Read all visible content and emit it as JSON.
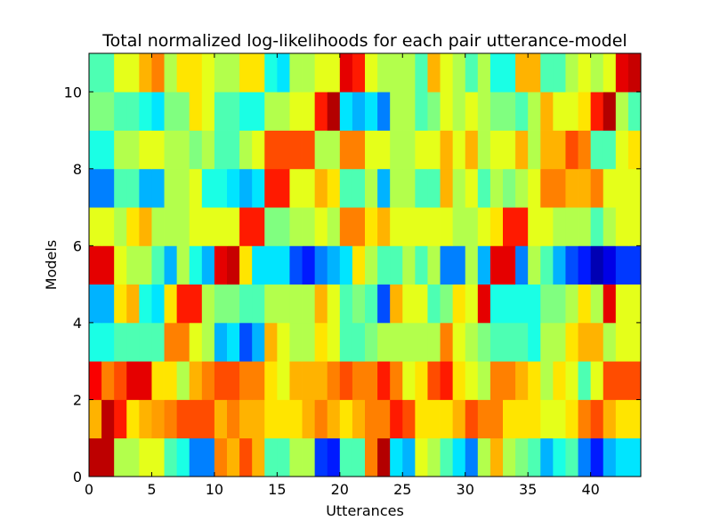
{
  "chart_data": {
    "type": "heatmap",
    "title": "Total normalized log-likelihoods for each pair utterance-model",
    "xlabel": "Utterances",
    "ylabel": "Models",
    "xlim": [
      0,
      44
    ],
    "ylim": [
      0,
      11
    ],
    "xticks": [
      "0",
      "5",
      "10",
      "15",
      "20",
      "25",
      "30",
      "35",
      "40"
    ],
    "yticks": [
      "0",
      "2",
      "4",
      "6",
      "8",
      "10"
    ],
    "colormap": "jet",
    "value_range": [
      0,
      1
    ],
    "grid": false,
    "legend": "none",
    "rows_bottom_to_top": [
      [
        0.94,
        0.94,
        0.55,
        0.55,
        0.6,
        0.6,
        0.45,
        0.4,
        0.25,
        0.25,
        0.75,
        0.7,
        0.8,
        0.7,
        0.45,
        0.45,
        0.55,
        0.55,
        0.18,
        0.15,
        0.45,
        0.45,
        0.75,
        0.95,
        0.35,
        0.3,
        0.6,
        0.55,
        0.45,
        0.35,
        0.25,
        0.55,
        0.7,
        0.55,
        0.5,
        0.45,
        0.3,
        0.4,
        0.45,
        0.25,
        0.15,
        0.3,
        0.35,
        0.35
      ],
      [
        0.7,
        0.94,
        0.85,
        0.65,
        0.7,
        0.72,
        0.75,
        0.8,
        0.8,
        0.8,
        0.7,
        0.75,
        0.7,
        0.7,
        0.65,
        0.65,
        0.65,
        0.7,
        0.75,
        0.7,
        0.65,
        0.7,
        0.75,
        0.75,
        0.85,
        0.8,
        0.65,
        0.65,
        0.65,
        0.7,
        0.8,
        0.75,
        0.75,
        0.65,
        0.65,
        0.65,
        0.6,
        0.6,
        0.65,
        0.75,
        0.8,
        0.7,
        0.65,
        0.65
      ],
      [
        0.88,
        0.75,
        0.8,
        0.9,
        0.9,
        0.65,
        0.65,
        0.55,
        0.7,
        0.75,
        0.8,
        0.8,
        0.75,
        0.75,
        0.65,
        0.6,
        0.7,
        0.7,
        0.7,
        0.75,
        0.8,
        0.75,
        0.75,
        0.85,
        0.75,
        0.6,
        0.65,
        0.8,
        0.85,
        0.65,
        0.6,
        0.55,
        0.75,
        0.75,
        0.7,
        0.65,
        0.55,
        0.65,
        0.6,
        0.45,
        0.6,
        0.8,
        0.8,
        0.8
      ],
      [
        0.4,
        0.4,
        0.45,
        0.45,
        0.45,
        0.45,
        0.75,
        0.75,
        0.6,
        0.55,
        0.3,
        0.35,
        0.2,
        0.3,
        0.7,
        0.6,
        0.55,
        0.55,
        0.65,
        0.6,
        0.45,
        0.45,
        0.5,
        0.55,
        0.55,
        0.55,
        0.55,
        0.55,
        0.75,
        0.6,
        0.55,
        0.5,
        0.45,
        0.45,
        0.45,
        0.4,
        0.55,
        0.55,
        0.65,
        0.7,
        0.7,
        0.55,
        0.6,
        0.6
      ],
      [
        0.3,
        0.3,
        0.65,
        0.7,
        0.4,
        0.35,
        0.65,
        0.85,
        0.85,
        0.55,
        0.5,
        0.5,
        0.45,
        0.45,
        0.55,
        0.55,
        0.55,
        0.55,
        0.7,
        0.6,
        0.45,
        0.5,
        0.45,
        0.2,
        0.7,
        0.6,
        0.6,
        0.45,
        0.5,
        0.65,
        0.6,
        0.9,
        0.4,
        0.4,
        0.4,
        0.4,
        0.5,
        0.5,
        0.55,
        0.65,
        0.55,
        0.9,
        0.6,
        0.6
      ],
      [
        0.9,
        0.9,
        0.6,
        0.55,
        0.55,
        0.45,
        0.3,
        0.55,
        0.4,
        0.3,
        0.9,
        0.93,
        0.65,
        0.35,
        0.35,
        0.35,
        0.2,
        0.15,
        0.25,
        0.3,
        0.35,
        0.65,
        0.55,
        0.45,
        0.45,
        0.55,
        0.45,
        0.55,
        0.25,
        0.25,
        0.55,
        0.3,
        0.9,
        0.9,
        0.25,
        0.55,
        0.45,
        0.3,
        0.2,
        0.15,
        0.05,
        0.1,
        0.18,
        0.18
      ],
      [
        0.6,
        0.6,
        0.55,
        0.65,
        0.7,
        0.55,
        0.55,
        0.55,
        0.6,
        0.6,
        0.6,
        0.6,
        0.85,
        0.85,
        0.5,
        0.5,
        0.55,
        0.55,
        0.6,
        0.55,
        0.75,
        0.75,
        0.65,
        0.7,
        0.6,
        0.6,
        0.6,
        0.6,
        0.6,
        0.55,
        0.55,
        0.6,
        0.65,
        0.85,
        0.85,
        0.6,
        0.6,
        0.55,
        0.55,
        0.55,
        0.45,
        0.55,
        0.6,
        0.6
      ],
      [
        0.25,
        0.25,
        0.45,
        0.45,
        0.3,
        0.3,
        0.55,
        0.55,
        0.6,
        0.4,
        0.4,
        0.35,
        0.3,
        0.35,
        0.85,
        0.85,
        0.6,
        0.6,
        0.7,
        0.65,
        0.45,
        0.45,
        0.55,
        0.3,
        0.55,
        0.55,
        0.45,
        0.45,
        0.7,
        0.55,
        0.6,
        0.45,
        0.55,
        0.5,
        0.55,
        0.6,
        0.75,
        0.75,
        0.7,
        0.7,
        0.75,
        0.6,
        0.6,
        0.6
      ],
      [
        0.4,
        0.4,
        0.55,
        0.55,
        0.6,
        0.6,
        0.55,
        0.55,
        0.5,
        0.55,
        0.45,
        0.45,
        0.55,
        0.6,
        0.8,
        0.8,
        0.8,
        0.8,
        0.55,
        0.55,
        0.75,
        0.75,
        0.6,
        0.6,
        0.55,
        0.55,
        0.6,
        0.6,
        0.7,
        0.6,
        0.7,
        0.55,
        0.6,
        0.6,
        0.7,
        0.55,
        0.7,
        0.7,
        0.8,
        0.75,
        0.45,
        0.45,
        0.6,
        0.65
      ],
      [
        0.5,
        0.5,
        0.45,
        0.45,
        0.4,
        0.35,
        0.5,
        0.5,
        0.65,
        0.6,
        0.45,
        0.45,
        0.4,
        0.4,
        0.55,
        0.55,
        0.6,
        0.6,
        0.85,
        0.95,
        0.35,
        0.3,
        0.35,
        0.25,
        0.55,
        0.55,
        0.45,
        0.5,
        0.6,
        0.55,
        0.6,
        0.55,
        0.5,
        0.5,
        0.45,
        0.55,
        0.7,
        0.6,
        0.6,
        0.65,
        0.85,
        0.95,
        0.55,
        0.45
      ],
      [
        0.45,
        0.45,
        0.6,
        0.6,
        0.7,
        0.75,
        0.55,
        0.65,
        0.65,
        0.6,
        0.55,
        0.55,
        0.65,
        0.65,
        0.4,
        0.35,
        0.55,
        0.55,
        0.6,
        0.6,
        0.9,
        0.85,
        0.6,
        0.55,
        0.55,
        0.55,
        0.45,
        0.7,
        0.6,
        0.55,
        0.45,
        0.55,
        0.4,
        0.4,
        0.7,
        0.7,
        0.45,
        0.45,
        0.55,
        0.6,
        0.55,
        0.6,
        0.9,
        0.93
      ]
    ]
  }
}
